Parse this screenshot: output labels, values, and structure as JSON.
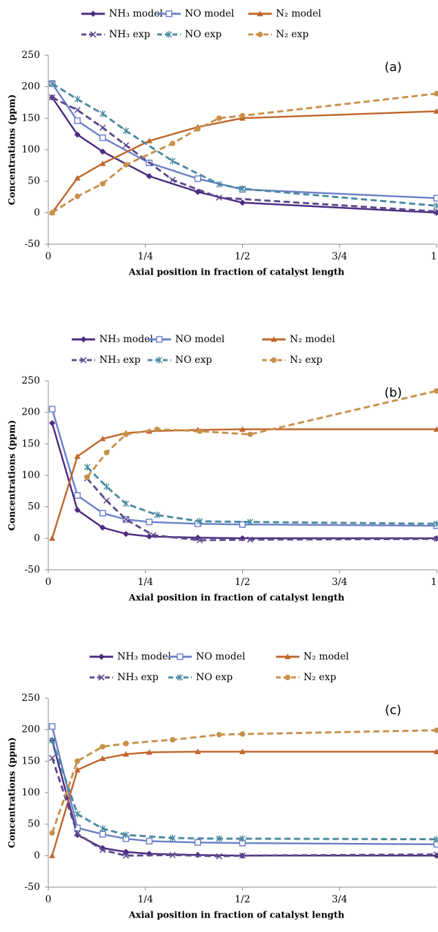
{
  "chart_data": [
    {
      "type": "line",
      "annotation": "(a)",
      "y_label": "Concentrations (ppm)",
      "x_label": "Axial position in fraction of catalyst length",
      "xlim": [
        0,
        1
      ],
      "xticks": [
        0,
        {
          "value": 0.25,
          "label": "1/4"
        },
        {
          "value": 0.5,
          "label": "1/2"
        },
        {
          "value": 0.75,
          "label": "3/4"
        },
        1
      ],
      "ylim": [
        -50,
        250
      ],
      "yticks": [
        -50,
        0,
        50,
        100,
        150,
        200,
        250
      ],
      "series": [
        {
          "name": "NH₃ model",
          "color": "#4b2a80",
          "marker": "diamond",
          "dashed": false,
          "x": [
            0.01,
            0.075,
            0.14,
            0.26,
            0.385,
            0.5,
            1
          ],
          "values": [
            183,
            124,
            97,
            58,
            33,
            16,
            0
          ]
        },
        {
          "name": "NO model",
          "color": "#6b80c8",
          "marker": "square",
          "dashed": false,
          "x": [
            0.01,
            0.075,
            0.14,
            0.26,
            0.385,
            0.5,
            1
          ],
          "values": [
            205,
            146,
            119,
            79,
            54,
            37,
            23
          ]
        },
        {
          "name": "N₂ model",
          "color": "#c0662a",
          "marker": "triangle",
          "dashed": false,
          "x": [
            0.01,
            0.075,
            0.14,
            0.26,
            0.385,
            0.5,
            1
          ],
          "values": [
            0,
            55,
            78,
            114,
            136,
            150,
            161
          ]
        },
        {
          "name": "NH₃ exp",
          "color": "#5e4a8c",
          "marker": "x",
          "dashed": true,
          "x": [
            0.01,
            0.075,
            0.14,
            0.2,
            0.32,
            0.44,
            1
          ],
          "values": [
            183,
            163,
            135,
            107,
            52,
            24,
            2
          ]
        },
        {
          "name": "NO exp",
          "color": "#4a8aa0",
          "marker": "star",
          "dashed": true,
          "x": [
            0.01,
            0.075,
            0.14,
            0.2,
            0.32,
            0.44,
            0.5,
            1
          ],
          "values": [
            205,
            180,
            157,
            130,
            82,
            45,
            38,
            11
          ]
        },
        {
          "name": "N₂ exp",
          "color": "#c8904a",
          "marker": "circle",
          "dashed": true,
          "x": [
            0.01,
            0.075,
            0.14,
            0.2,
            0.32,
            0.385,
            0.44,
            0.5,
            1
          ],
          "values": [
            0,
            26,
            46,
            76,
            110,
            133,
            150,
            154,
            189
          ]
        }
      ]
    },
    {
      "type": "line",
      "annotation": "(b)",
      "y_label": "Concentrations (ppm)",
      "x_label": "Axial position in fraction of catalyst length",
      "xlim": [
        0,
        1
      ],
      "xticks": [
        0,
        {
          "value": 0.25,
          "label": "1/4"
        },
        {
          "value": 0.5,
          "label": "1/2"
        },
        {
          "value": 0.75,
          "label": "3/4"
        },
        1
      ],
      "ylim": [
        -50,
        250
      ],
      "yticks": [
        -50,
        0,
        50,
        100,
        150,
        200,
        250
      ],
      "series": [
        {
          "name": "NH₃ model",
          "color": "#4b2a80",
          "marker": "diamond",
          "dashed": false,
          "x": [
            0.01,
            0.075,
            0.14,
            0.2,
            0.26,
            0.385,
            0.5,
            1
          ],
          "values": [
            183,
            45,
            17,
            7,
            3,
            1,
            0,
            0
          ]
        },
        {
          "name": "NO model",
          "color": "#6b80c8",
          "marker": "square",
          "dashed": false,
          "x": [
            0.01,
            0.075,
            0.14,
            0.2,
            0.26,
            0.385,
            0.5,
            1
          ],
          "values": [
            205,
            68,
            40,
            30,
            26,
            23,
            22,
            20
          ]
        },
        {
          "name": "N₂ model",
          "color": "#c0662a",
          "marker": "triangle",
          "dashed": false,
          "x": [
            0.01,
            0.075,
            0.14,
            0.2,
            0.26,
            0.385,
            0.5,
            1
          ],
          "values": [
            0,
            130,
            158,
            167,
            170,
            172,
            173,
            173
          ]
        },
        {
          "name": "NH₃ exp",
          "color": "#5e4a8c",
          "marker": "x",
          "dashed": true,
          "x": [
            0.1,
            0.15,
            0.2,
            0.27,
            0.39,
            0.52,
            1
          ],
          "values": [
            95,
            60,
            30,
            5,
            -3,
            -2,
            -1
          ]
        },
        {
          "name": "NO exp",
          "color": "#4a8aa0",
          "marker": "star",
          "dashed": true,
          "x": [
            0.1,
            0.15,
            0.2,
            0.28,
            0.39,
            0.52,
            1
          ],
          "values": [
            113,
            82,
            55,
            37,
            27,
            26,
            23
          ]
        },
        {
          "name": "N₂ exp",
          "color": "#c8904a",
          "marker": "circle",
          "dashed": true,
          "x": [
            0.1,
            0.15,
            0.2,
            0.28,
            0.39,
            0.52,
            1
          ],
          "values": [
            97,
            136,
            165,
            173,
            170,
            165,
            234
          ]
        }
      ]
    },
    {
      "type": "line",
      "annotation": "(c)",
      "y_label": "Concentrations (ppm)",
      "x_label": "Axial position in fraction of catalyst length",
      "xlim": [
        0,
        1
      ],
      "xticks": [
        0,
        {
          "value": 0.25,
          "label": "1/4"
        },
        {
          "value": 0.5,
          "label": "1/2"
        },
        {
          "value": 0.75,
          "label": "3/4"
        }
      ],
      "ylim": [
        -50,
        250
      ],
      "yticks": [
        -50,
        0,
        50,
        100,
        150,
        200,
        250
      ],
      "series": [
        {
          "name": "NH₃ model",
          "color": "#4b2a80",
          "marker": "diamond",
          "dashed": false,
          "x": [
            0.01,
            0.075,
            0.14,
            0.2,
            0.26,
            0.385,
            0.5,
            1
          ],
          "values": [
            183,
            33,
            12,
            6,
            3,
            1,
            0,
            0
          ]
        },
        {
          "name": "NO model",
          "color": "#6b80c8",
          "marker": "square",
          "dashed": false,
          "x": [
            0.01,
            0.075,
            0.14,
            0.2,
            0.26,
            0.385,
            0.5,
            1
          ],
          "values": [
            205,
            44,
            34,
            27,
            23,
            21,
            20,
            18
          ]
        },
        {
          "name": "N₂ model",
          "color": "#c0662a",
          "marker": "triangle",
          "dashed": false,
          "x": [
            0.01,
            0.075,
            0.14,
            0.2,
            0.26,
            0.385,
            0.5,
            1
          ],
          "values": [
            0,
            136,
            154,
            161,
            164,
            165,
            165,
            165
          ]
        },
        {
          "name": "NH₃ exp",
          "color": "#5e4a8c",
          "marker": "x",
          "dashed": true,
          "x": [
            0.01,
            0.075,
            0.14,
            0.2,
            0.32,
            0.44,
            0.5,
            1
          ],
          "values": [
            155,
            35,
            9,
            0,
            1,
            -1,
            0,
            2
          ]
        },
        {
          "name": "NO exp",
          "color": "#4a8aa0",
          "marker": "star",
          "dashed": true,
          "x": [
            0.01,
            0.075,
            0.14,
            0.2,
            0.32,
            0.44,
            0.5,
            1
          ],
          "values": [
            183,
            66,
            43,
            33,
            28,
            27,
            27,
            26
          ]
        },
        {
          "name": "N₂ exp",
          "color": "#c8904a",
          "marker": "circle",
          "dashed": true,
          "x": [
            0.01,
            0.075,
            0.14,
            0.2,
            0.32,
            0.44,
            0.5,
            1
          ],
          "values": [
            36,
            150,
            173,
            178,
            184,
            192,
            193,
            199
          ]
        }
      ]
    }
  ]
}
